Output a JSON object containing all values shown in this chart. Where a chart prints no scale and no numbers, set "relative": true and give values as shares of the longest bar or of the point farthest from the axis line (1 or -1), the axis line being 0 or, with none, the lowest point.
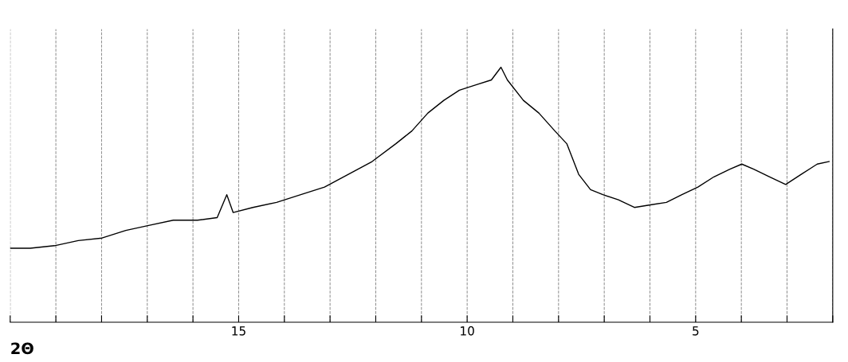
{
  "chart_data": {
    "type": "line",
    "xlabel": "2Θ",
    "relative": true,
    "color": "#000000",
    "grid": "x",
    "marker": "none",
    "line_style": "solid",
    "xlim": [
      20,
      2
    ],
    "xticks": [
      {
        "value": 20,
        "label": null
      },
      {
        "value": 19,
        "label": null
      },
      {
        "value": 18,
        "label": null
      },
      {
        "value": 17,
        "label": null
      },
      {
        "value": 16,
        "label": null
      },
      15,
      {
        "value": 14,
        "label": null
      },
      {
        "value": 13,
        "label": null
      },
      {
        "value": 12,
        "label": null
      },
      {
        "value": 11,
        "label": null
      },
      10,
      {
        "value": 9,
        "label": null
      },
      {
        "value": 8,
        "label": null
      },
      {
        "value": 7,
        "label": null
      },
      {
        "value": 6,
        "label": null
      },
      5,
      {
        "value": 4,
        "label": null
      },
      {
        "value": 3,
        "label": null
      },
      {
        "value": 2,
        "label": null
      }
    ],
    "x": [
      20.0,
      19.56,
      19.03,
      18.51,
      17.99,
      17.47,
      16.95,
      16.43,
      15.9,
      15.47,
      15.26,
      15.12,
      14.69,
      14.17,
      13.64,
      13.12,
      12.6,
      12.08,
      11.56,
      11.21,
      10.86,
      10.51,
      10.17,
      9.82,
      9.47,
      9.26,
      9.12,
      8.77,
      8.43,
      8.08,
      7.82,
      7.56,
      7.3,
      7.03,
      6.69,
      6.34,
      5.99,
      5.64,
      5.3,
      4.95,
      4.6,
      4.25,
      3.99,
      3.73,
      3.38,
      3.03,
      2.69,
      2.34,
      2.08
    ],
    "values": [
      0.29,
      0.29,
      0.3,
      0.32,
      0.33,
      0.36,
      0.38,
      0.4,
      0.4,
      0.41,
      0.5,
      0.43,
      0.45,
      0.47,
      0.5,
      0.53,
      0.58,
      0.63,
      0.7,
      0.75,
      0.82,
      0.87,
      0.91,
      0.93,
      0.95,
      1.0,
      0.95,
      0.87,
      0.82,
      0.75,
      0.7,
      0.58,
      0.52,
      0.5,
      0.48,
      0.45,
      0.46,
      0.47,
      0.5,
      0.53,
      0.57,
      0.6,
      0.62,
      0.6,
      0.57,
      0.54,
      0.58,
      0.62,
      0.63
    ]
  }
}
